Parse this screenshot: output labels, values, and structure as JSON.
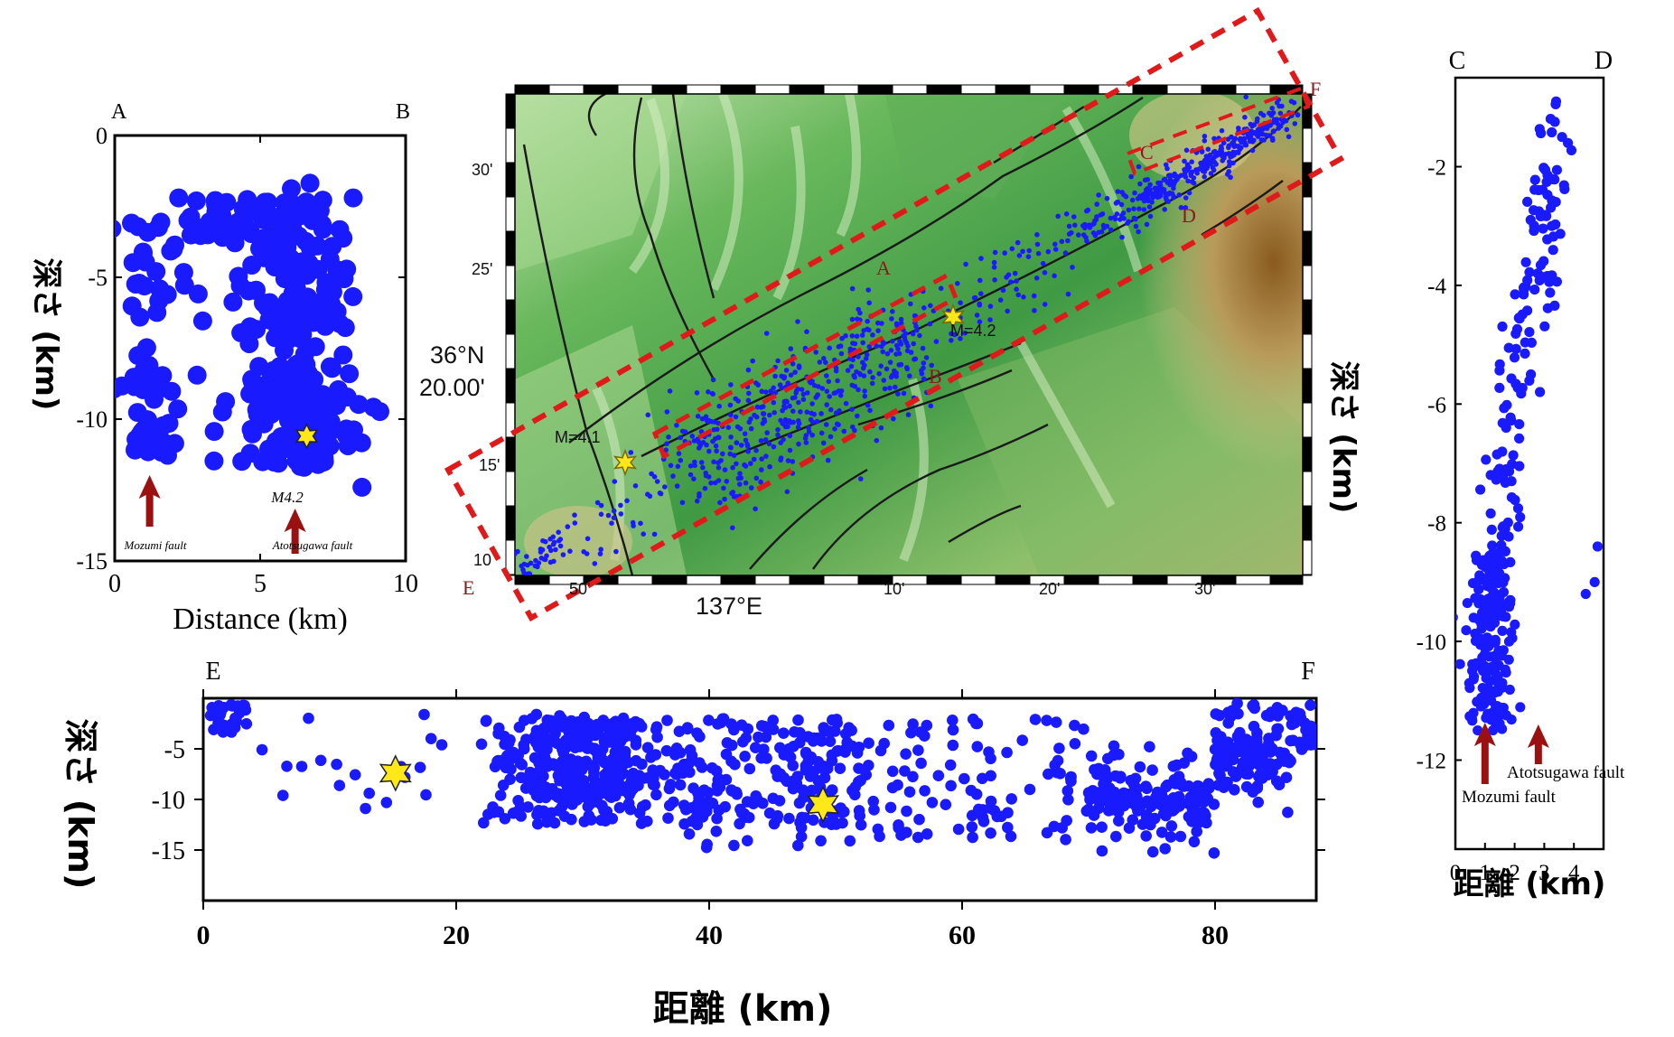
{
  "colors": {
    "quake": "#1a1aff",
    "star_fill": "#ffe81a",
    "fault_arrow": "#9b1010",
    "box_dash": "#e01a1a",
    "section_letter": "#8b1a1a"
  },
  "chart_data": [
    {
      "id": "ab",
      "type": "scatter",
      "section": {
        "start": "A",
        "end": "B"
      },
      "xlabel": "Distance (km)",
      "ylabel": "深さ (km)",
      "xlim": [
        0,
        10
      ],
      "ylim": [
        -15,
        0
      ],
      "x_ticks": [
        "0",
        "5",
        "10"
      ],
      "y_ticks": [
        "0",
        "-5",
        "-10",
        "-15"
      ],
      "mainshock": {
        "x": 6.6,
        "y": -10.6,
        "label": "M4.2"
      },
      "fault_arrows": [
        {
          "name": "Mozumi fault",
          "x": 1.2
        },
        {
          "name": "Atotsugawa fault",
          "x": 6.2
        }
      ]
    },
    {
      "id": "cd",
      "type": "scatter",
      "section": {
        "start": "C",
        "end": "D"
      },
      "xlabel": "距離 (km)",
      "ylabel": "深さ (km)",
      "xlim": [
        0,
        5
      ],
      "ylim": [
        -13.5,
        -0.5
      ],
      "x_ticks": [
        "0",
        "1",
        "2",
        "3",
        "4"
      ],
      "y_ticks": [
        "-2",
        "-4",
        "-6",
        "-8",
        "-10",
        "-12"
      ],
      "fault_arrows": [
        {
          "name": "Mozumi fault",
          "x": 1.0
        },
        {
          "name": "Atotsugawa fault",
          "x": 2.8
        }
      ]
    },
    {
      "id": "ef",
      "type": "scatter",
      "section": {
        "start": "E",
        "end": "F"
      },
      "xlabel": "距離 (km)",
      "ylabel": "深さ (km)",
      "xlim": [
        0,
        88
      ],
      "ylim": [
        -20,
        0
      ],
      "x_ticks": [
        "0",
        "20",
        "40",
        "60",
        "80"
      ],
      "y_ticks": [
        "-5",
        "-10",
        "-15"
      ],
      "stars": [
        {
          "x": 15.2,
          "y": -7.4
        },
        {
          "x": 49.0,
          "y": -10.5
        }
      ]
    }
  ],
  "map": {
    "lat_label_line1": "36°N",
    "lat_label_line2": "20.00'",
    "lon_label": "137°E",
    "lat_ticks": [
      "30'",
      "25'",
      "15'",
      "10"
    ],
    "lon_ticks": [
      "50'",
      "10'",
      "20'",
      "30'"
    ],
    "events": [
      {
        "label": "M=4.1"
      },
      {
        "label": "M=4.2"
      }
    ],
    "section_letters": [
      "A",
      "B",
      "C",
      "D",
      "E",
      "F"
    ]
  }
}
